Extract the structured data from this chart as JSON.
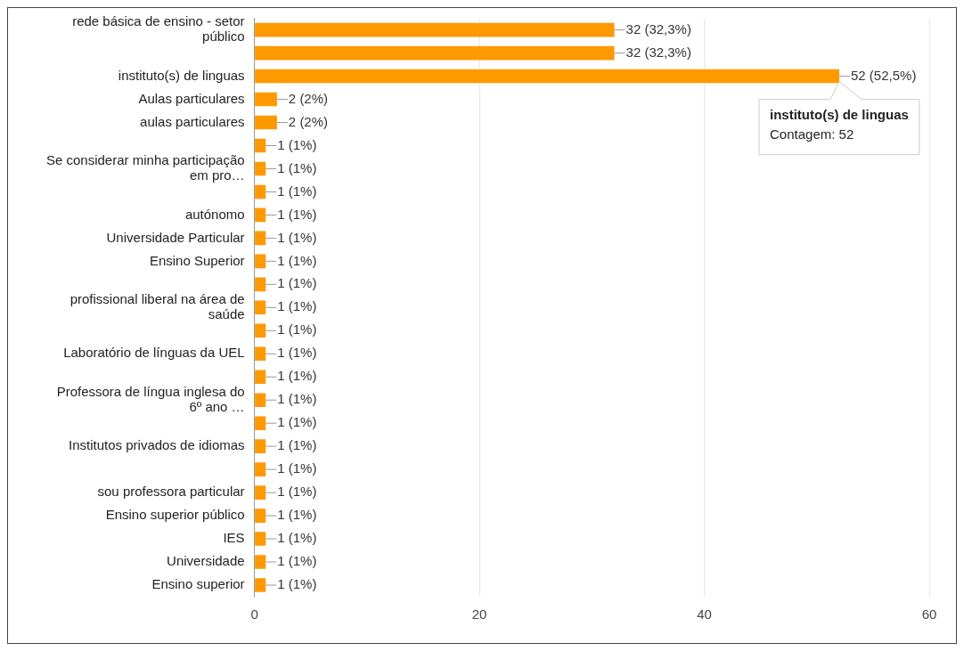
{
  "chart_data": {
    "type": "bar",
    "orientation": "horizontal",
    "categories": [
      "rede básica de ensino - setor público",
      null,
      "instituto(s) de linguas",
      "Aulas particulares",
      "aulas particulares",
      null,
      "Se considerar minha participação em pro…",
      null,
      "autónomo",
      "Universidade Particular",
      "Ensino Superior",
      null,
      "profissional liberal na área de saúde",
      null,
      "Laboratório de línguas da UEL",
      null,
      "Professora de língua inglesa do 6º ano …",
      null,
      "Institutos privados de idiomas",
      null,
      "sou professora particular",
      "Ensino superior público",
      "IES",
      "Universidade",
      "Ensino superior"
    ],
    "values": [
      32,
      32,
      52,
      2,
      2,
      1,
      1,
      1,
      1,
      1,
      1,
      1,
      1,
      1,
      1,
      1,
      1,
      1,
      1,
      1,
      1,
      1,
      1,
      1,
      1
    ],
    "value_labels": [
      "32 (32,3%)",
      "32 (32,3%)",
      "52 (52,5%)",
      "2 (2%)",
      "2 (2%)",
      "1 (1%)",
      "1 (1%)",
      "1 (1%)",
      "1 (1%)",
      "1 (1%)",
      "1 (1%)",
      "1 (1%)",
      "1 (1%)",
      "1 (1%)",
      "1 (1%)",
      "1 (1%)",
      "1 (1%)",
      "1 (1%)",
      "1 (1%)",
      "1 (1%)",
      "1 (1%)",
      "1 (1%)",
      "1 (1%)",
      "1 (1%)",
      "1 (1%)"
    ],
    "color": "#ff9900",
    "xlim": [
      0,
      60
    ],
    "xticks": [
      0,
      20,
      40,
      60
    ],
    "grid": "x",
    "annotations": [
      {
        "text": "instituto(s) de linguas\nContagem: 52",
        "x": 52,
        "y": "instituto(s) de linguas"
      }
    ]
  }
}
